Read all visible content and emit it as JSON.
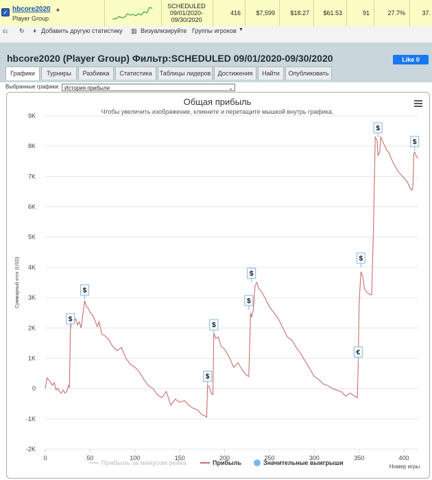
{
  "summary": {
    "player": "hbcore2020",
    "group": "Player Group",
    "filter_cell": [
      "SCHEDULED",
      "09/01/2020-",
      "09/30/2020"
    ],
    "games": "416",
    "col1": "$7,599",
    "col2": "$18.27",
    "col3": "$61.53",
    "col4": "91",
    "col5": "27.7%",
    "col6": "37."
  },
  "toolbar": {
    "add_stats": "Добавить другую статистику",
    "visualize": "Визуализируйте",
    "player_groups": "Группы игроков"
  },
  "header": {
    "title": "hbcore2020 (Player Group) Фильтр:SCHEDULED 09/01/2020-09/30/2020",
    "like_label": "Like 0"
  },
  "tabs": [
    "Графики",
    "Турниры",
    "Разбивка",
    "Статистика",
    "Таблицы лидеров",
    "Достижения",
    "Найти",
    "Опубликовать"
  ],
  "graph_select": {
    "label": "Выбранные графики:",
    "value": "История прибыли"
  },
  "icons": [
    "checkbox-checked-icon",
    "poker-player-icon",
    "undo-icon",
    "redo-icon",
    "chart-icon",
    "dropdown-icon",
    "hamburger-menu-icon",
    "dollar-marker-icon",
    "euro-marker-icon"
  ],
  "colors": {
    "profit_line": "#c96b6b",
    "rake_line": "#d8d8d8",
    "big_win": "#7cb5ec",
    "title": "#333333"
  },
  "chart_data": {
    "type": "line",
    "title": "Общая прибыль",
    "subtitle": "Чтобы увеличить изображение, кликните и перетащите мышкой внутрь графика.",
    "xlabel": "Номер игры",
    "ylabel": "Суммарный итог (USD)",
    "xlim": [
      0,
      416
    ],
    "ylim": [
      -2000,
      9000
    ],
    "x_ticks": [
      "0",
      "50",
      "100",
      "150",
      "200",
      "250",
      "300",
      "350",
      "400"
    ],
    "y_ticks": [
      "-2K",
      "-1K",
      "0",
      "1K",
      "2K",
      "3K",
      "4K",
      "5K",
      "6K",
      "7K",
      "8K",
      "9K"
    ],
    "legend_position": "bottom",
    "series": [
      {
        "name": "Прибыль",
        "x": [
          0,
          2,
          5,
          8,
          10,
          12,
          14,
          16,
          18,
          20,
          22,
          24,
          26,
          27,
          28,
          30,
          32,
          34,
          36,
          38,
          40,
          42,
          44,
          46,
          48,
          50,
          52,
          54,
          56,
          58,
          60,
          63,
          66,
          70,
          75,
          80,
          85,
          90,
          95,
          100,
          105,
          110,
          115,
          120,
          125,
          130,
          135,
          140,
          145,
          150,
          155,
          160,
          165,
          170,
          174,
          178,
          180,
          181,
          183,
          185,
          187,
          188,
          190,
          193,
          196,
          200,
          205,
          210,
          215,
          220,
          224,
          227,
          229,
          230,
          232,
          234,
          236,
          238,
          240,
          245,
          250,
          255,
          260,
          265,
          270,
          275,
          280,
          285,
          290,
          295,
          300,
          305,
          310,
          315,
          320,
          325,
          330,
          335,
          340,
          345,
          348,
          349,
          350,
          352,
          354,
          356,
          358,
          360,
          362,
          364,
          366,
          368,
          370,
          371,
          373,
          374,
          375,
          377,
          379,
          381,
          383,
          385,
          388,
          391,
          394,
          397,
          400,
          403,
          405,
          407,
          409,
          410,
          411,
          412,
          414,
          416
        ],
        "y": [
          0,
          350,
          250,
          100,
          200,
          -50,
          0,
          -100,
          -150,
          -50,
          -150,
          -100,
          100,
          50,
          1900,
          2400,
          2200,
          2300,
          2100,
          2200,
          2000,
          2450,
          2900,
          2700,
          2650,
          2500,
          2450,
          2350,
          2200,
          2050,
          2200,
          1800,
          1750,
          1650,
          1400,
          1250,
          1350,
          1000,
          800,
          700,
          550,
          300,
          100,
          0,
          -200,
          -300,
          -100,
          -550,
          -350,
          -450,
          -400,
          -550,
          -650,
          -700,
          -850,
          -900,
          -950,
          100,
          50,
          -150,
          -200,
          1850,
          1650,
          1700,
          1400,
          1300,
          1050,
          700,
          850,
          600,
          450,
          400,
          2500,
          2350,
          2600,
          3400,
          3500,
          3300,
          3250,
          3000,
          2700,
          2500,
          2300,
          2000,
          1700,
          1600,
          1350,
          1150,
          900,
          650,
          400,
          300,
          150,
          100,
          0,
          -50,
          -100,
          -250,
          -150,
          -250,
          -300,
          800,
          2800,
          3850,
          3700,
          3300,
          3200,
          3150,
          3100,
          3100,
          5200,
          8300,
          8200,
          7700,
          7800,
          8300,
          8250,
          8100,
          8000,
          7850,
          7800,
          7650,
          7450,
          7300,
          7150,
          7050,
          6950,
          6850,
          6750,
          6600,
          6550,
          6700,
          7750,
          7800,
          7650,
          7600
        ]
      }
    ],
    "legend": [
      "Прибыль за минусом рейка",
      "Прибыль",
      "Значительные выигрыши"
    ],
    "big_win_markers": [
      {
        "x": 28,
        "y": 2000,
        "symbol": "$"
      },
      {
        "x": 44,
        "y": 2950,
        "symbol": "$"
      },
      {
        "x": 181,
        "y": 100,
        "symbol": "$"
      },
      {
        "x": 188,
        "y": 1800,
        "symbol": "$"
      },
      {
        "x": 227,
        "y": 2600,
        "symbol": "$"
      },
      {
        "x": 230,
        "y": 3500,
        "symbol": "$"
      },
      {
        "x": 349,
        "y": 900,
        "symbol": "€"
      },
      {
        "x": 352,
        "y": 4000,
        "symbol": "$"
      },
      {
        "x": 371,
        "y": 8300,
        "symbol": "$"
      },
      {
        "x": 412,
        "y": 7850,
        "symbol": "$"
      }
    ]
  }
}
